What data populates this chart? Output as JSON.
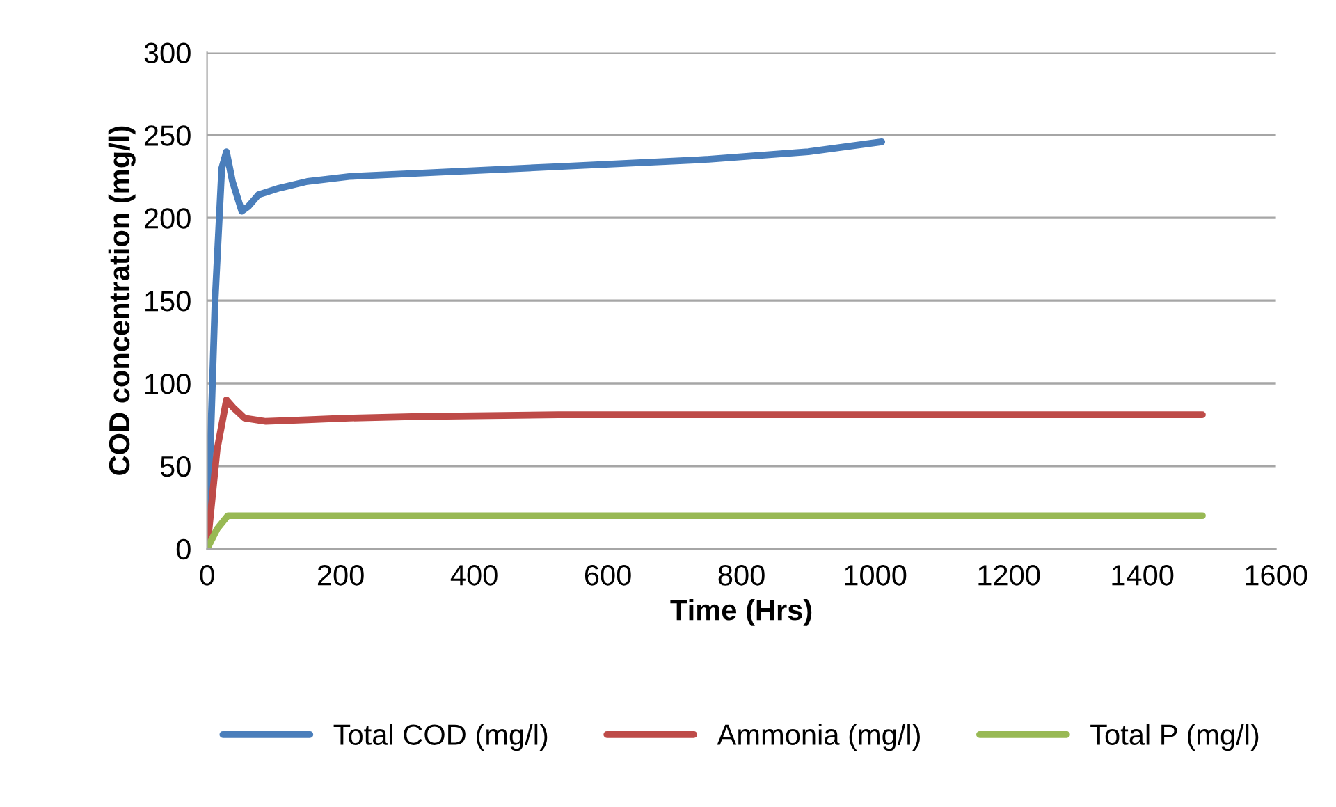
{
  "chart_data": {
    "type": "line",
    "xlabel": "Time (Hrs)",
    "ylabel": "COD concentration (mg/l)",
    "xlim": [
      0,
      1600
    ],
    "xticks": [
      0,
      200,
      400,
      600,
      800,
      1000,
      1200,
      1400,
      1600
    ],
    "ylim": [
      0,
      300
    ],
    "yticks": [
      0,
      50,
      100,
      150,
      200,
      250,
      300
    ],
    "grid": "y",
    "legend": "bottom",
    "marker": "none",
    "line_style": "solid",
    "series": [
      {
        "name": "Total COD (mg/l)",
        "color": "#4a7ebb",
        "x": [
          0,
          12,
          22,
          29,
          38,
          52,
          62,
          77,
          108,
          150,
          213,
          317,
          526,
          735,
          900,
          1010
        ],
        "values": [
          0,
          150,
          230,
          240,
          222,
          204,
          207,
          214,
          218,
          222,
          225,
          227,
          231,
          235,
          240,
          246
        ]
      },
      {
        "name": "Ammonia (mg/l)",
        "color": "#be4b48",
        "x": [
          0,
          15,
          29,
          40,
          56,
          88,
          150,
          213,
          317,
          526,
          944,
          1490
        ],
        "values": [
          0,
          60,
          90,
          85,
          79,
          77,
          78,
          79,
          80,
          81,
          81,
          81
        ]
      },
      {
        "name": "Total P (mg/l)",
        "color": "#98b954",
        "x": [
          0,
          15,
          31,
          46,
          100,
          600,
          1490
        ],
        "values": [
          0,
          12,
          20,
          20,
          20,
          20,
          20
        ]
      }
    ]
  }
}
